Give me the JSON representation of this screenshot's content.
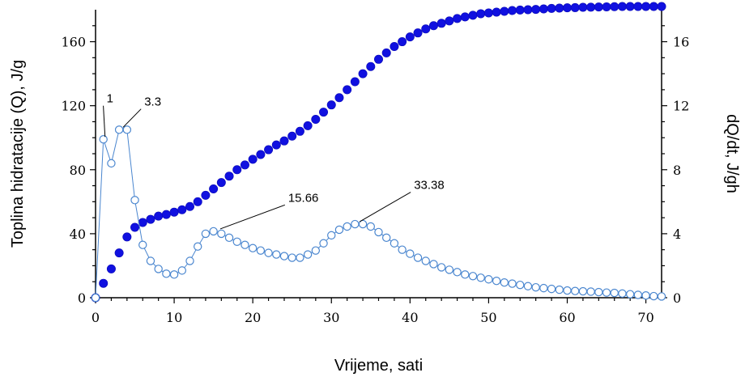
{
  "chart_data": {
    "type": "line",
    "title": "",
    "xlabel": "Vrijeme, sati",
    "ylabel_left": "Toplina hidratacije (Q), J/g",
    "ylabel_right": "dQ/dt, J/gh",
    "xlim": [
      0,
      72
    ],
    "ylim_left": [
      0,
      180
    ],
    "ylim_right": [
      0,
      18
    ],
    "x_ticks": [
      0,
      10,
      20,
      30,
      40,
      50,
      60,
      70
    ],
    "y_left_ticks": [
      0,
      40,
      80,
      120,
      160
    ],
    "y_right_ticks": [
      0,
      4,
      8,
      12,
      16
    ],
    "grid": false,
    "series": [
      {
        "axis": "left",
        "style": "filled",
        "color": "#1010e0",
        "x": [
          0,
          1,
          2,
          3,
          4,
          5,
          6,
          7,
          8,
          9,
          10,
          11,
          12,
          13,
          14,
          15,
          16,
          17,
          18,
          19,
          20,
          21,
          22,
          23,
          24,
          25,
          26,
          27,
          28,
          29,
          30,
          31,
          32,
          33,
          34,
          35,
          36,
          37,
          38,
          39,
          40,
          41,
          42,
          43,
          44,
          45,
          46,
          47,
          48,
          49,
          50,
          51,
          52,
          53,
          54,
          55,
          56,
          57,
          58,
          59,
          60,
          61,
          62,
          63,
          64,
          65,
          66,
          67,
          68,
          69,
          70,
          71,
          72
        ],
        "y": [
          0,
          9,
          18,
          28,
          38,
          44,
          47,
          49,
          51,
          52,
          53.5,
          55,
          57,
          60,
          64,
          68,
          72,
          76,
          80,
          83,
          86.5,
          89.5,
          92.5,
          95.5,
          98,
          101,
          104,
          107.5,
          111.5,
          116,
          120.5,
          125,
          130,
          135,
          140,
          144.5,
          149,
          153,
          157,
          160,
          163,
          165.5,
          168,
          170,
          171.5,
          173,
          174.5,
          175.5,
          176.5,
          177.5,
          178,
          178.5,
          179,
          179.5,
          179.8,
          180,
          180.2,
          180.5,
          180.8,
          181,
          181.2,
          181.3,
          181.5,
          181.6,
          181.7,
          181.8,
          181.9,
          182,
          182,
          182,
          182,
          182,
          182
        ]
      },
      {
        "axis": "right",
        "style": "open",
        "color": "#4a86cf",
        "x": [
          0,
          1,
          2,
          3,
          4,
          5,
          6,
          7,
          8,
          9,
          10,
          11,
          12,
          13,
          14,
          15,
          16,
          17,
          18,
          19,
          20,
          21,
          22,
          23,
          24,
          25,
          26,
          27,
          28,
          29,
          30,
          31,
          32,
          33,
          34,
          35,
          36,
          37,
          38,
          39,
          40,
          41,
          42,
          43,
          44,
          45,
          46,
          47,
          48,
          49,
          50,
          51,
          52,
          53,
          54,
          55,
          56,
          57,
          58,
          59,
          60,
          61,
          62,
          63,
          64,
          65,
          66,
          67,
          68,
          69,
          70,
          71,
          72
        ],
        "y": [
          0,
          9.9,
          8.4,
          10.5,
          10.5,
          6.1,
          3.3,
          2.3,
          1.8,
          1.5,
          1.45,
          1.7,
          2.3,
          3.2,
          4.0,
          4.15,
          4.0,
          3.75,
          3.5,
          3.3,
          3.1,
          2.95,
          2.8,
          2.7,
          2.6,
          2.5,
          2.5,
          2.7,
          2.95,
          3.4,
          3.9,
          4.25,
          4.45,
          4.6,
          4.6,
          4.45,
          4.1,
          3.75,
          3.4,
          3.0,
          2.75,
          2.5,
          2.3,
          2.1,
          1.9,
          1.75,
          1.6,
          1.45,
          1.35,
          1.25,
          1.15,
          1.05,
          0.95,
          0.88,
          0.8,
          0.72,
          0.65,
          0.6,
          0.55,
          0.5,
          0.45,
          0.42,
          0.4,
          0.38,
          0.35,
          0.32,
          0.3,
          0.26,
          0.22,
          0.18,
          0.14,
          0.1,
          0.08
        ]
      }
    ],
    "annotations": [
      {
        "text": "1",
        "x": 1,
        "y": 9.9,
        "tx": 1.4,
        "ty": 12.2
      },
      {
        "text": "3.3",
        "x": 3.3,
        "y": 10.5,
        "tx": 6.2,
        "ty": 12.0
      },
      {
        "text": "15.66",
        "x": 15.66,
        "y": 4.15,
        "tx": 24.5,
        "ty": 6.0
      },
      {
        "text": "33.38",
        "x": 33.38,
        "y": 4.6,
        "tx": 40.5,
        "ty": 6.8
      }
    ]
  }
}
